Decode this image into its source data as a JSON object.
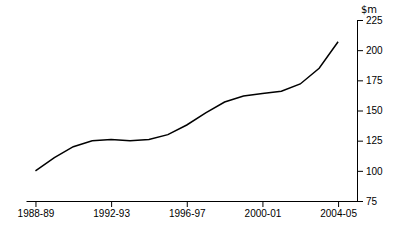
{
  "chart_data": {
    "type": "line",
    "ylabel": "$m",
    "x": [
      1988.5,
      1989.5,
      1990.5,
      1991.5,
      1992.5,
      1993.5,
      1994.5,
      1995.5,
      1996.5,
      1997.5,
      1998.5,
      1999.5,
      2000.5,
      2001.5,
      2002.5,
      2003.5,
      2004.5
    ],
    "values": [
      100,
      111,
      120,
      125,
      126,
      125,
      126,
      130,
      138,
      148,
      157,
      162,
      164,
      166,
      172,
      185,
      207
    ],
    "color": "#000000",
    "xlim": [
      1988.0,
      2005.5
    ],
    "xticks": [
      {
        "value": 1988.5,
        "label": "1988-89"
      },
      {
        "value": 1992.5,
        "label": "1992-93"
      },
      {
        "value": 1996.5,
        "label": "1996-97"
      },
      {
        "value": 2000.5,
        "label": "2000-01"
      },
      {
        "value": 2004.5,
        "label": "2004-05"
      }
    ],
    "ylim": [
      75,
      225
    ],
    "yticks": [
      75,
      100,
      125,
      150,
      175,
      200,
      225
    ],
    "grid": false
  }
}
